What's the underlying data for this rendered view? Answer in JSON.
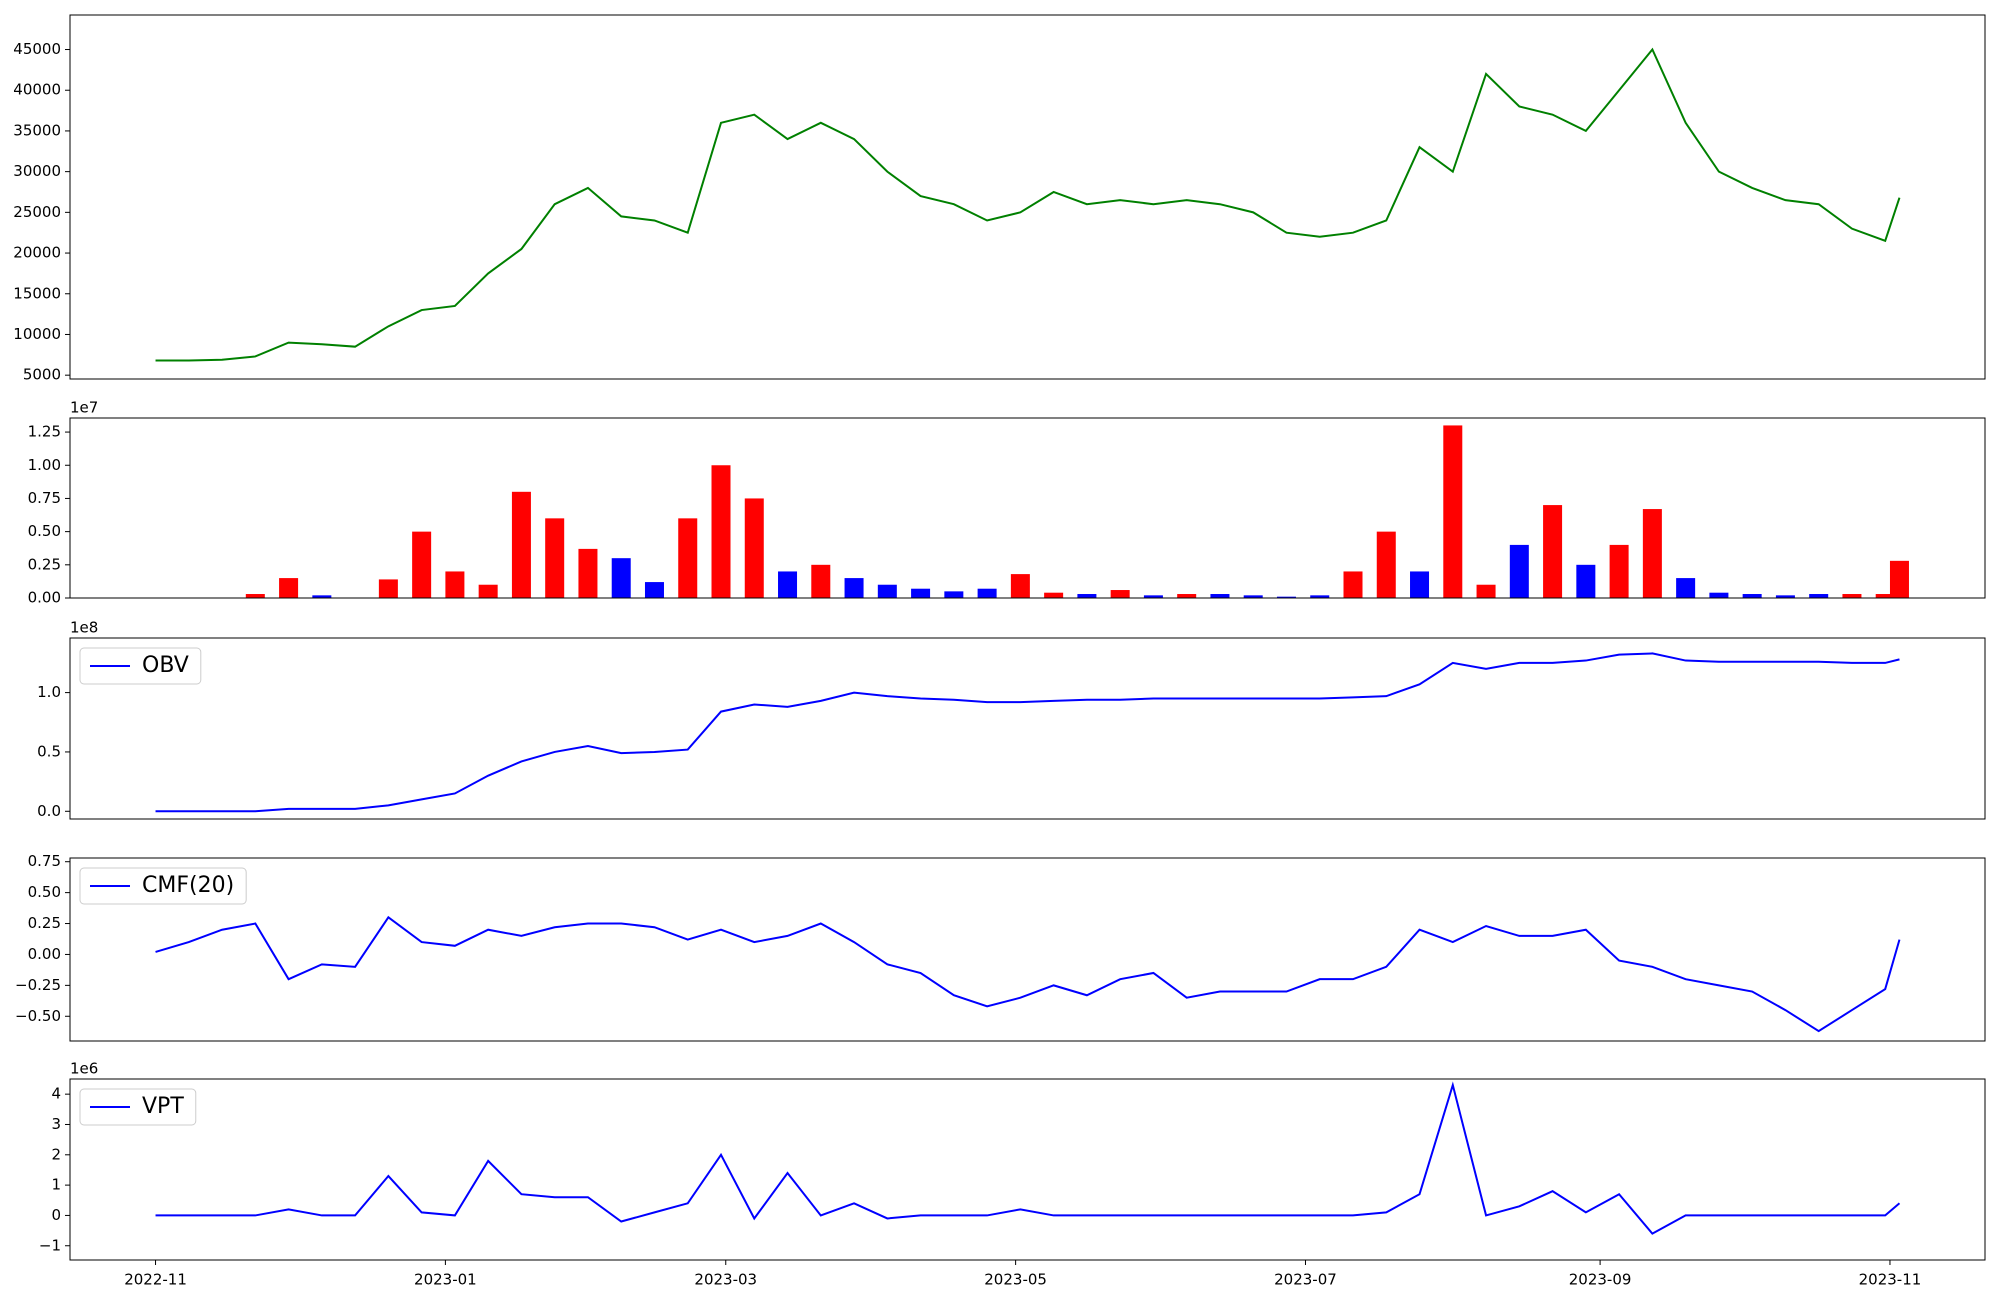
{
  "chart_data": [
    {
      "type": "line",
      "color": "#008000",
      "x": [
        "2022-11-01",
        "2022-11-08",
        "2022-11-15",
        "2022-11-22",
        "2022-11-29",
        "2022-12-06",
        "2022-12-13",
        "2022-12-20",
        "2022-12-27",
        "2023-01-03",
        "2023-01-10",
        "2023-01-17",
        "2023-01-24",
        "2023-01-31",
        "2023-02-07",
        "2023-02-14",
        "2023-02-21",
        "2023-02-28",
        "2023-03-07",
        "2023-03-14",
        "2023-03-21",
        "2023-03-28",
        "2023-04-04",
        "2023-04-11",
        "2023-04-18",
        "2023-04-25",
        "2023-05-02",
        "2023-05-09",
        "2023-05-16",
        "2023-05-23",
        "2023-05-30",
        "2023-06-06",
        "2023-06-13",
        "2023-06-20",
        "2023-06-27",
        "2023-07-04",
        "2023-07-11",
        "2023-07-18",
        "2023-07-25",
        "2023-08-01",
        "2023-08-08",
        "2023-08-15",
        "2023-08-22",
        "2023-08-29",
        "2023-09-05",
        "2023-09-12",
        "2023-09-19",
        "2023-09-26",
        "2023-10-03",
        "2023-10-10",
        "2023-10-17",
        "2023-10-24",
        "2023-10-31",
        "2023-11-03"
      ],
      "values": [
        6800,
        6800,
        6900,
        7300,
        9000,
        8800,
        8500,
        11000,
        13000,
        13500,
        17500,
        20500,
        26000,
        28000,
        24500,
        24000,
        22500,
        36000,
        37000,
        34000,
        36000,
        34000,
        30000,
        27000,
        26000,
        24000,
        25000,
        27500,
        26000,
        26500,
        26000,
        26500,
        26000,
        25000,
        22500,
        22000,
        22500,
        24000,
        33000,
        30000,
        42000,
        38000,
        37000,
        35000,
        40000,
        45000,
        36000,
        30000,
        28000,
        26500,
        26000,
        23000,
        21500,
        26800
      ],
      "xlim": [
        "2022-10-14",
        "2023-11-21"
      ],
      "ylim": [
        4530,
        49240
      ],
      "yticks": [
        5000,
        10000,
        15000,
        20000,
        25000,
        30000,
        35000,
        40000,
        45000
      ]
    },
    {
      "type": "bar",
      "offset_label": "1e7",
      "x": [
        "2022-11-01",
        "2022-11-08",
        "2022-11-15",
        "2022-11-22",
        "2022-11-29",
        "2022-12-06",
        "2022-12-13",
        "2022-12-20",
        "2022-12-27",
        "2023-01-03",
        "2023-01-10",
        "2023-01-17",
        "2023-01-24",
        "2023-01-31",
        "2023-02-07",
        "2023-02-14",
        "2023-02-21",
        "2023-02-28",
        "2023-03-07",
        "2023-03-14",
        "2023-03-21",
        "2023-03-28",
        "2023-04-04",
        "2023-04-11",
        "2023-04-18",
        "2023-04-25",
        "2023-05-02",
        "2023-05-09",
        "2023-05-16",
        "2023-05-23",
        "2023-05-30",
        "2023-06-06",
        "2023-06-13",
        "2023-06-20",
        "2023-06-27",
        "2023-07-04",
        "2023-07-11",
        "2023-07-18",
        "2023-07-25",
        "2023-08-01",
        "2023-08-08",
        "2023-08-15",
        "2023-08-22",
        "2023-08-29",
        "2023-09-05",
        "2023-09-12",
        "2023-09-19",
        "2023-09-26",
        "2023-10-03",
        "2023-10-10",
        "2023-10-17",
        "2023-10-24",
        "2023-10-31",
        "2023-11-03"
      ],
      "values": [
        0,
        0,
        0,
        300000,
        1500000,
        200000,
        0,
        1400000,
        5000000,
        2000000,
        1000000,
        8000000,
        6000000,
        3700000,
        3000000,
        1200000,
        6000000,
        10000000,
        7500000,
        2000000,
        2500000,
        1500000,
        1000000,
        700000,
        500000,
        700000,
        1800000,
        400000,
        300000,
        600000,
        200000,
        300000,
        300000,
        200000,
        100000,
        200000,
        2000000,
        5000000,
        2000000,
        13000000,
        1000000,
        4000000,
        7000000,
        2500000,
        4000000,
        6700000,
        1500000,
        400000,
        300000,
        200000,
        300000,
        300000,
        300000,
        2800000
      ],
      "colors": [
        "red",
        "red",
        "red",
        "red",
        "red",
        "blue",
        "blue",
        "red",
        "red",
        "red",
        "red",
        "red",
        "red",
        "red",
        "blue",
        "blue",
        "red",
        "red",
        "red",
        "blue",
        "red",
        "blue",
        "blue",
        "blue",
        "blue",
        "blue",
        "red",
        "red",
        "blue",
        "red",
        "blue",
        "red",
        "blue",
        "blue",
        "blue",
        "blue",
        "red",
        "red",
        "blue",
        "red",
        "red",
        "blue",
        "red",
        "blue",
        "red",
        "red",
        "blue",
        "blue",
        "blue",
        "blue",
        "blue",
        "red",
        "red",
        "red"
      ],
      "xlim": [
        "2022-10-14",
        "2023-11-21"
      ],
      "ylim": [
        0,
        13560000
      ],
      "yticks": [
        {
          "value": 0,
          "label": "0.00"
        },
        {
          "value": 2500000,
          "label": "0.25"
        },
        {
          "value": 5000000,
          "label": "0.50"
        },
        {
          "value": 7500000,
          "label": "0.75"
        },
        {
          "value": 10000000,
          "label": "1.00"
        },
        {
          "value": 12500000,
          "label": "1.25"
        }
      ]
    },
    {
      "type": "line",
      "offset_label": "1e8",
      "legend": "upper left",
      "x": [
        "2022-11-01",
        "2022-11-08",
        "2022-11-15",
        "2022-11-22",
        "2022-11-29",
        "2022-12-06",
        "2022-12-13",
        "2022-12-20",
        "2022-12-27",
        "2023-01-03",
        "2023-01-10",
        "2023-01-17",
        "2023-01-24",
        "2023-01-31",
        "2023-02-07",
        "2023-02-14",
        "2023-02-21",
        "2023-02-28",
        "2023-03-07",
        "2023-03-14",
        "2023-03-21",
        "2023-03-28",
        "2023-04-04",
        "2023-04-11",
        "2023-04-18",
        "2023-04-25",
        "2023-05-02",
        "2023-05-09",
        "2023-05-16",
        "2023-05-23",
        "2023-05-30",
        "2023-06-06",
        "2023-06-13",
        "2023-06-20",
        "2023-06-27",
        "2023-07-04",
        "2023-07-11",
        "2023-07-18",
        "2023-07-25",
        "2023-08-01",
        "2023-08-08",
        "2023-08-15",
        "2023-08-22",
        "2023-08-29",
        "2023-09-05",
        "2023-09-12",
        "2023-09-19",
        "2023-09-26",
        "2023-10-03",
        "2023-10-10",
        "2023-10-17",
        "2023-10-24",
        "2023-10-31",
        "2023-11-03"
      ],
      "series": [
        {
          "name": "OBV",
          "color": "#0000ff",
          "values": [
            0,
            0,
            0,
            0,
            2000000,
            2000000,
            2000000,
            5000000,
            10000000,
            15000000,
            30000000,
            42000000,
            50000000,
            55000000,
            49000000,
            50000000,
            52000000,
            84000000,
            90000000,
            88000000,
            93000000,
            100000000,
            97000000,
            95000000,
            94000000,
            92000000,
            92000000,
            93000000,
            94000000,
            94000000,
            95000000,
            95000000,
            95000000,
            95000000,
            95000000,
            95000000,
            96000000,
            97000000,
            107000000,
            125000000,
            120000000,
            125000000,
            125000000,
            127000000,
            132000000,
            133000000,
            127000000,
            126000000,
            126000000,
            126000000,
            126000000,
            125000000,
            125000000,
            128000000
          ]
        }
      ],
      "xlim": [
        "2022-10-14",
        "2023-11-21"
      ],
      "ylim": [
        -6500000,
        146000000
      ],
      "yticks": [
        {
          "value": 0,
          "label": "0.0"
        },
        {
          "value": 50000000,
          "label": "0.5"
        },
        {
          "value": 100000000,
          "label": "1.0"
        }
      ]
    },
    {
      "type": "line",
      "legend": "upper left",
      "x": [
        "2022-11-01",
        "2022-11-08",
        "2022-11-15",
        "2022-11-22",
        "2022-11-29",
        "2022-12-06",
        "2022-12-13",
        "2022-12-20",
        "2022-12-27",
        "2023-01-03",
        "2023-01-10",
        "2023-01-17",
        "2023-01-24",
        "2023-01-31",
        "2023-02-07",
        "2023-02-14",
        "2023-02-21",
        "2023-02-28",
        "2023-03-07",
        "2023-03-14",
        "2023-03-21",
        "2023-03-28",
        "2023-04-04",
        "2023-04-11",
        "2023-04-18",
        "2023-04-25",
        "2023-05-02",
        "2023-05-09",
        "2023-05-16",
        "2023-05-23",
        "2023-05-30",
        "2023-06-06",
        "2023-06-13",
        "2023-06-20",
        "2023-06-27",
        "2023-07-04",
        "2023-07-11",
        "2023-07-18",
        "2023-07-25",
        "2023-08-01",
        "2023-08-08",
        "2023-08-15",
        "2023-08-22",
        "2023-08-29",
        "2023-09-05",
        "2023-09-12",
        "2023-09-19",
        "2023-09-26",
        "2023-10-03",
        "2023-10-10",
        "2023-10-17",
        "2023-10-24",
        "2023-10-31",
        "2023-11-03"
      ],
      "series": [
        {
          "name": "CMF(20)",
          "color": "#0000ff",
          "values": [
            0.02,
            0.1,
            0.2,
            0.25,
            -0.2,
            -0.08,
            -0.1,
            0.3,
            0.1,
            0.07,
            0.2,
            0.15,
            0.22,
            0.25,
            0.25,
            0.22,
            0.12,
            0.2,
            0.1,
            0.15,
            0.25,
            0.1,
            -0.08,
            -0.15,
            -0.33,
            -0.42,
            -0.35,
            -0.25,
            -0.33,
            -0.2,
            -0.15,
            -0.35,
            -0.3,
            -0.3,
            -0.3,
            -0.2,
            -0.2,
            -0.1,
            0.2,
            0.1,
            0.23,
            0.15,
            0.15,
            0.2,
            -0.05,
            -0.1,
            -0.2,
            -0.25,
            -0.3,
            -0.45,
            -0.62,
            -0.45,
            -0.28,
            0.12
          ]
        }
      ],
      "xlim": [
        "2022-10-14",
        "2023-11-21"
      ],
      "ylim": [
        -0.7,
        0.78
      ],
      "yticks": [
        {
          "value": -0.5,
          "label": "−0.50"
        },
        {
          "value": -0.25,
          "label": "−0.25"
        },
        {
          "value": 0,
          "label": "0.00"
        },
        {
          "value": 0.25,
          "label": "0.25"
        },
        {
          "value": 0.5,
          "label": "0.50"
        },
        {
          "value": 0.75,
          "label": "0.75"
        }
      ]
    },
    {
      "type": "line",
      "offset_label": "1e6",
      "legend": "upper left",
      "x": [
        "2022-11-01",
        "2022-11-08",
        "2022-11-15",
        "2022-11-22",
        "2022-11-29",
        "2022-12-06",
        "2022-12-13",
        "2022-12-20",
        "2022-12-27",
        "2023-01-03",
        "2023-01-10",
        "2023-01-17",
        "2023-01-24",
        "2023-01-31",
        "2023-02-07",
        "2023-02-14",
        "2023-02-21",
        "2023-02-28",
        "2023-03-07",
        "2023-03-14",
        "2023-03-21",
        "2023-03-28",
        "2023-04-04",
        "2023-04-11",
        "2023-04-18",
        "2023-04-25",
        "2023-05-02",
        "2023-05-09",
        "2023-05-16",
        "2023-05-23",
        "2023-05-30",
        "2023-06-06",
        "2023-06-13",
        "2023-06-20",
        "2023-06-27",
        "2023-07-04",
        "2023-07-11",
        "2023-07-18",
        "2023-07-25",
        "2023-08-01",
        "2023-08-08",
        "2023-08-15",
        "2023-08-22",
        "2023-08-29",
        "2023-09-05",
        "2023-09-12",
        "2023-09-19",
        "2023-09-26",
        "2023-10-03",
        "2023-10-10",
        "2023-10-17",
        "2023-10-24",
        "2023-10-31",
        "2023-11-03"
      ],
      "series": [
        {
          "name": "VPT",
          "color": "#0000ff",
          "values": [
            0,
            0,
            0,
            0,
            200000,
            0,
            0,
            1300000,
            100000,
            0,
            1800000,
            700000,
            600000,
            600000,
            -200000,
            100000,
            400000,
            2000000,
            -100000,
            1400000,
            0,
            400000,
            -100000,
            0,
            0,
            0,
            200000,
            0,
            0,
            0,
            0,
            0,
            0,
            0,
            0,
            0,
            0,
            100000,
            700000,
            4300000,
            0,
            300000,
            800000,
            100000,
            700000,
            -600000,
            0,
            0,
            0,
            0,
            0,
            0,
            0,
            400000
          ]
        }
      ],
      "xlim": [
        "2022-10-14",
        "2023-11-21"
      ],
      "ylim": [
        -1470000,
        4500000
      ],
      "yticks": [
        {
          "value": -1000000,
          "label": "−1"
        },
        {
          "value": 0,
          "label": "0"
        },
        {
          "value": 1000000,
          "label": "1"
        },
        {
          "value": 2000000,
          "label": "2"
        },
        {
          "value": 3000000,
          "label": "3"
        },
        {
          "value": 4000000,
          "label": "4"
        }
      ],
      "xticks": [
        "2022-11",
        "2023-01",
        "2023-03",
        "2023-05",
        "2023-07",
        "2023-09",
        "2023-11"
      ]
    }
  ]
}
